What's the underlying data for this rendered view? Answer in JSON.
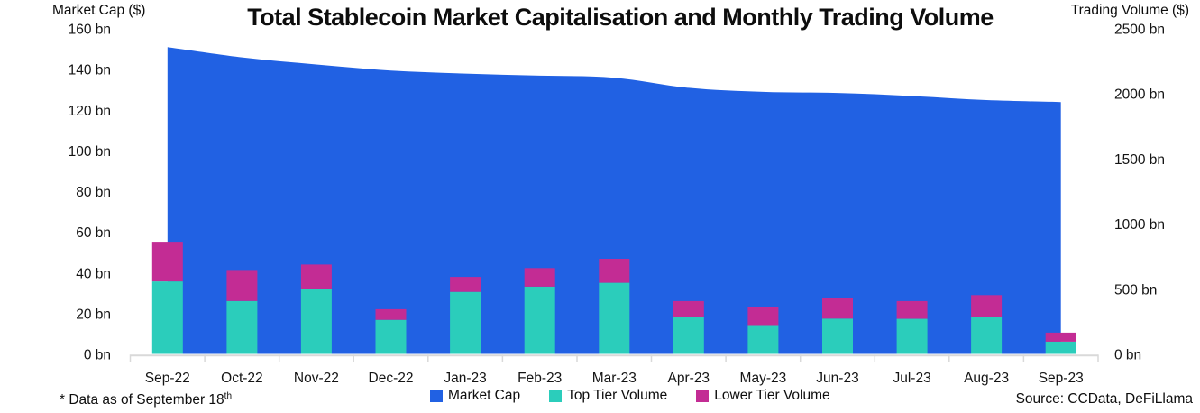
{
  "title": "Total Stablecoin Market Capitalisation and Monthly Trading Volume",
  "footnote": {
    "text": "* Data as of September 18",
    "superscript": "th"
  },
  "source": "Source: CCData, DeFiLlama",
  "legend": [
    {
      "label": "Market Cap",
      "color": "#2161E3"
    },
    {
      "label": "Top Tier Volume",
      "color": "#2BCDBB"
    },
    {
      "label": "Lower Tier Volume",
      "color": "#C32C94"
    }
  ],
  "chart_data": {
    "type": "combo",
    "categories": [
      "Sep-22",
      "Oct-22",
      "Nov-22",
      "Dec-22",
      "Jan-23",
      "Feb-23",
      "Mar-23",
      "Apr-23",
      "May-23",
      "Jun-23",
      "Jul-23",
      "Aug-23",
      "Sep-23"
    ],
    "title": "Total Stablecoin Market Capitalisation and Monthly Trading Volume",
    "grid": false,
    "legend_position": "bottom",
    "left_axis": {
      "title": "Market Cap ($)",
      "min": 0,
      "max": 160,
      "step": 20,
      "unit": "bn"
    },
    "right_axis": {
      "title": "Trading Volume ($)",
      "min": 0,
      "max": 2500,
      "step": 500,
      "unit": "bn"
    },
    "series": [
      {
        "name": "Market Cap",
        "type": "area",
        "axis": "left",
        "color": "#2161E3",
        "values": [
          151,
          146,
          142.5,
          139.5,
          138,
          137,
          136,
          131,
          129,
          128.5,
          127,
          125,
          124
        ]
      },
      {
        "name": "Top Tier Volume",
        "type": "bar",
        "axis": "right",
        "color": "#2BCDBB",
        "values": [
          560,
          410,
          505,
          265,
          480,
          520,
          550,
          285,
          225,
          275,
          273,
          285,
          98
        ]
      },
      {
        "name": "Lower Tier Volume",
        "type": "bar",
        "axis": "right",
        "color": "#C32C94",
        "values": [
          305,
          238,
          185,
          82,
          115,
          143,
          184,
          124,
          140,
          157,
          136,
          170,
          69
        ]
      }
    ]
  }
}
